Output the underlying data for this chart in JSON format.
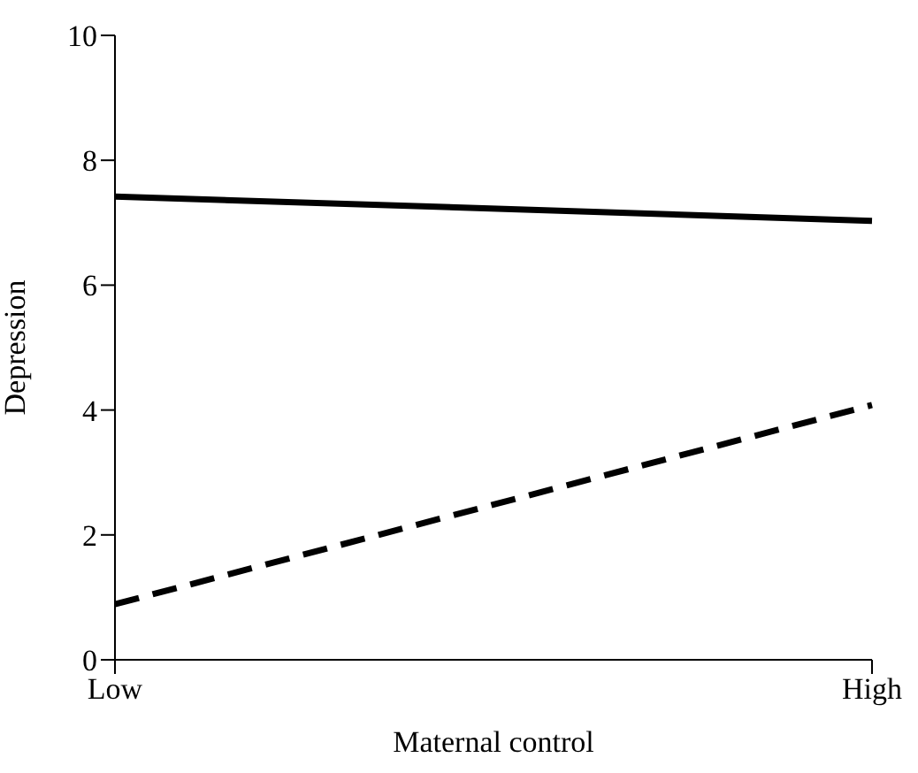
{
  "chart_data": {
    "type": "line",
    "xlabel": "Maternal control",
    "ylabel": "Depression",
    "categories": [
      "Low",
      "High"
    ],
    "ylim": [
      0,
      10
    ],
    "yticks": [
      0,
      2,
      4,
      6,
      8,
      10
    ],
    "grid": false,
    "legend": false,
    "marker": "none",
    "series": [
      {
        "color": "#000000",
        "values": [
          7.42,
          7.03
        ],
        "line_style": "solid"
      },
      {
        "color": "#000000",
        "values": [
          0.89,
          4.08
        ],
        "line_style": "dashed"
      }
    ]
  }
}
